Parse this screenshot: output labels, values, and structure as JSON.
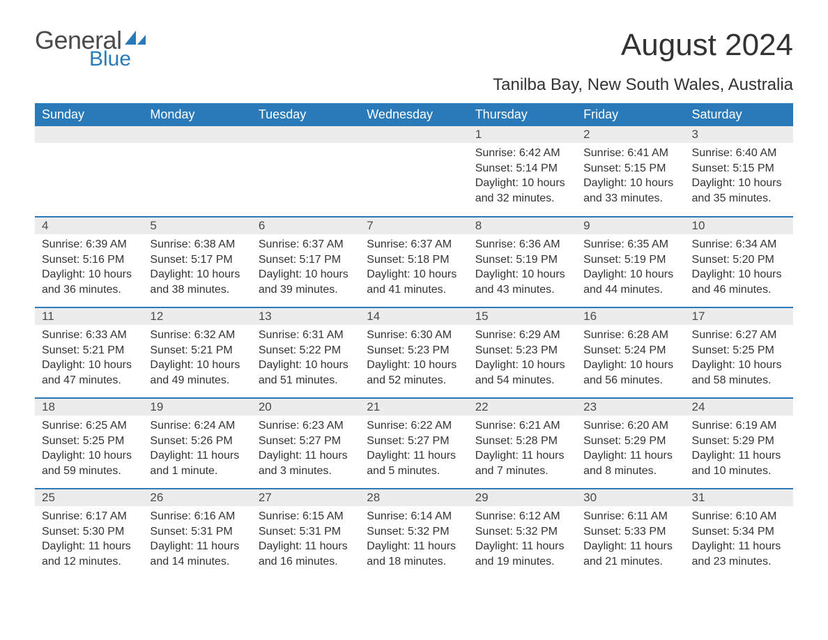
{
  "logo": {
    "text_general": "General",
    "text_blue": "Blue",
    "sail_color": "#2a7ab9"
  },
  "title": "August 2024",
  "location": "Tanilba Bay, New South Wales, Australia",
  "colors": {
    "header_bg": "#2a7ab9",
    "header_text": "#ffffff",
    "daybar_bg": "#ececec",
    "text": "#333333",
    "row_border": "#2a7ab9",
    "background": "#ffffff"
  },
  "fonts": {
    "body_family": "Arial",
    "title_size": 44,
    "location_size": 24,
    "th_size": 18,
    "cell_size": 16
  },
  "days_of_week": [
    "Sunday",
    "Monday",
    "Tuesday",
    "Wednesday",
    "Thursday",
    "Friday",
    "Saturday"
  ],
  "weeks": [
    [
      null,
      null,
      null,
      null,
      {
        "n": "1",
        "sr": "Sunrise: 6:42 AM",
        "ss": "Sunset: 5:14 PM",
        "dl": "Daylight: 10 hours and 32 minutes."
      },
      {
        "n": "2",
        "sr": "Sunrise: 6:41 AM",
        "ss": "Sunset: 5:15 PM",
        "dl": "Daylight: 10 hours and 33 minutes."
      },
      {
        "n": "3",
        "sr": "Sunrise: 6:40 AM",
        "ss": "Sunset: 5:15 PM",
        "dl": "Daylight: 10 hours and 35 minutes."
      }
    ],
    [
      {
        "n": "4",
        "sr": "Sunrise: 6:39 AM",
        "ss": "Sunset: 5:16 PM",
        "dl": "Daylight: 10 hours and 36 minutes."
      },
      {
        "n": "5",
        "sr": "Sunrise: 6:38 AM",
        "ss": "Sunset: 5:17 PM",
        "dl": "Daylight: 10 hours and 38 minutes."
      },
      {
        "n": "6",
        "sr": "Sunrise: 6:37 AM",
        "ss": "Sunset: 5:17 PM",
        "dl": "Daylight: 10 hours and 39 minutes."
      },
      {
        "n": "7",
        "sr": "Sunrise: 6:37 AM",
        "ss": "Sunset: 5:18 PM",
        "dl": "Daylight: 10 hours and 41 minutes."
      },
      {
        "n": "8",
        "sr": "Sunrise: 6:36 AM",
        "ss": "Sunset: 5:19 PM",
        "dl": "Daylight: 10 hours and 43 minutes."
      },
      {
        "n": "9",
        "sr": "Sunrise: 6:35 AM",
        "ss": "Sunset: 5:19 PM",
        "dl": "Daylight: 10 hours and 44 minutes."
      },
      {
        "n": "10",
        "sr": "Sunrise: 6:34 AM",
        "ss": "Sunset: 5:20 PM",
        "dl": "Daylight: 10 hours and 46 minutes."
      }
    ],
    [
      {
        "n": "11",
        "sr": "Sunrise: 6:33 AM",
        "ss": "Sunset: 5:21 PM",
        "dl": "Daylight: 10 hours and 47 minutes."
      },
      {
        "n": "12",
        "sr": "Sunrise: 6:32 AM",
        "ss": "Sunset: 5:21 PM",
        "dl": "Daylight: 10 hours and 49 minutes."
      },
      {
        "n": "13",
        "sr": "Sunrise: 6:31 AM",
        "ss": "Sunset: 5:22 PM",
        "dl": "Daylight: 10 hours and 51 minutes."
      },
      {
        "n": "14",
        "sr": "Sunrise: 6:30 AM",
        "ss": "Sunset: 5:23 PM",
        "dl": "Daylight: 10 hours and 52 minutes."
      },
      {
        "n": "15",
        "sr": "Sunrise: 6:29 AM",
        "ss": "Sunset: 5:23 PM",
        "dl": "Daylight: 10 hours and 54 minutes."
      },
      {
        "n": "16",
        "sr": "Sunrise: 6:28 AM",
        "ss": "Sunset: 5:24 PM",
        "dl": "Daylight: 10 hours and 56 minutes."
      },
      {
        "n": "17",
        "sr": "Sunrise: 6:27 AM",
        "ss": "Sunset: 5:25 PM",
        "dl": "Daylight: 10 hours and 58 minutes."
      }
    ],
    [
      {
        "n": "18",
        "sr": "Sunrise: 6:25 AM",
        "ss": "Sunset: 5:25 PM",
        "dl": "Daylight: 10 hours and 59 minutes."
      },
      {
        "n": "19",
        "sr": "Sunrise: 6:24 AM",
        "ss": "Sunset: 5:26 PM",
        "dl": "Daylight: 11 hours and 1 minute."
      },
      {
        "n": "20",
        "sr": "Sunrise: 6:23 AM",
        "ss": "Sunset: 5:27 PM",
        "dl": "Daylight: 11 hours and 3 minutes."
      },
      {
        "n": "21",
        "sr": "Sunrise: 6:22 AM",
        "ss": "Sunset: 5:27 PM",
        "dl": "Daylight: 11 hours and 5 minutes."
      },
      {
        "n": "22",
        "sr": "Sunrise: 6:21 AM",
        "ss": "Sunset: 5:28 PM",
        "dl": "Daylight: 11 hours and 7 minutes."
      },
      {
        "n": "23",
        "sr": "Sunrise: 6:20 AM",
        "ss": "Sunset: 5:29 PM",
        "dl": "Daylight: 11 hours and 8 minutes."
      },
      {
        "n": "24",
        "sr": "Sunrise: 6:19 AM",
        "ss": "Sunset: 5:29 PM",
        "dl": "Daylight: 11 hours and 10 minutes."
      }
    ],
    [
      {
        "n": "25",
        "sr": "Sunrise: 6:17 AM",
        "ss": "Sunset: 5:30 PM",
        "dl": "Daylight: 11 hours and 12 minutes."
      },
      {
        "n": "26",
        "sr": "Sunrise: 6:16 AM",
        "ss": "Sunset: 5:31 PM",
        "dl": "Daylight: 11 hours and 14 minutes."
      },
      {
        "n": "27",
        "sr": "Sunrise: 6:15 AM",
        "ss": "Sunset: 5:31 PM",
        "dl": "Daylight: 11 hours and 16 minutes."
      },
      {
        "n": "28",
        "sr": "Sunrise: 6:14 AM",
        "ss": "Sunset: 5:32 PM",
        "dl": "Daylight: 11 hours and 18 minutes."
      },
      {
        "n": "29",
        "sr": "Sunrise: 6:12 AM",
        "ss": "Sunset: 5:32 PM",
        "dl": "Daylight: 11 hours and 19 minutes."
      },
      {
        "n": "30",
        "sr": "Sunrise: 6:11 AM",
        "ss": "Sunset: 5:33 PM",
        "dl": "Daylight: 11 hours and 21 minutes."
      },
      {
        "n": "31",
        "sr": "Sunrise: 6:10 AM",
        "ss": "Sunset: 5:34 PM",
        "dl": "Daylight: 11 hours and 23 minutes."
      }
    ]
  ]
}
